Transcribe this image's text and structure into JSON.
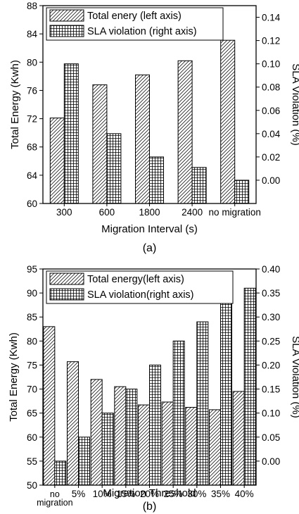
{
  "chart_data": [
    {
      "type": "bar",
      "caption": "(a)",
      "xlabel": "Migration Interval (s)",
      "ylabel": "Total Energy (Kwh)",
      "y2label": "SLA Violation (%)",
      "categories": [
        [
          "300"
        ],
        [
          "600"
        ],
        [
          "1800"
        ],
        [
          "2400"
        ],
        [
          "no migration"
        ]
      ],
      "ylim": [
        60,
        88
      ],
      "y_ticks": [
        60,
        64,
        68,
        72,
        76,
        80,
        84,
        88
      ],
      "y2lim": [
        -0.02,
        0.15
      ],
      "y2_ticks": [
        "0.00",
        "0.02",
        "0.04",
        "0.06",
        "0.08",
        "0.10",
        "0.12",
        "0.14"
      ],
      "series": [
        {
          "name": "Total enery (left axis)",
          "axis": "left",
          "pattern": "hatch",
          "values": [
            72.1,
            76.8,
            78.2,
            80.2,
            83.1
          ]
        },
        {
          "name": "SLA violation (right axis)",
          "axis": "right",
          "pattern": "grid",
          "values": [
            0.1,
            0.04,
            0.02,
            0.011,
            0.0
          ]
        }
      ],
      "legend": "top-left"
    },
    {
      "type": "bar",
      "caption": "(b)",
      "xlabel": "Migration Threshold",
      "ylabel": "Total Energy (Kwh)",
      "y2label": "SLA Violation (%)",
      "categories": [
        [
          "no",
          "migration"
        ],
        [
          "5%"
        ],
        [
          "10%"
        ],
        [
          "15%"
        ],
        [
          "20%"
        ],
        [
          "25%"
        ],
        [
          "30%"
        ],
        [
          "35%"
        ],
        [
          "40%"
        ]
      ],
      "ylim": [
        50,
        95
      ],
      "y_ticks": [
        50,
        55,
        60,
        65,
        70,
        75,
        80,
        85,
        90,
        95
      ],
      "y2lim": [
        -0.05,
        0.4
      ],
      "y2_ticks": [
        "0.00",
        "0.05",
        "0.10",
        "0.15",
        "0.20",
        "0.25",
        "0.30",
        "0.35",
        "0.40"
      ],
      "series": [
        {
          "name": "Total energy(left axis)",
          "axis": "left",
          "pattern": "hatch",
          "values": [
            83,
            75.7,
            72,
            70.5,
            66.7,
            67.3,
            66.2,
            65.7,
            69.5
          ]
        },
        {
          "name": "SLA violation(right axis)",
          "axis": "right",
          "pattern": "grid",
          "values": [
            0.0,
            0.05,
            0.1,
            0.15,
            0.2,
            0.25,
            0.29,
            0.39,
            0.36
          ]
        }
      ],
      "legend": "top-left"
    }
  ]
}
